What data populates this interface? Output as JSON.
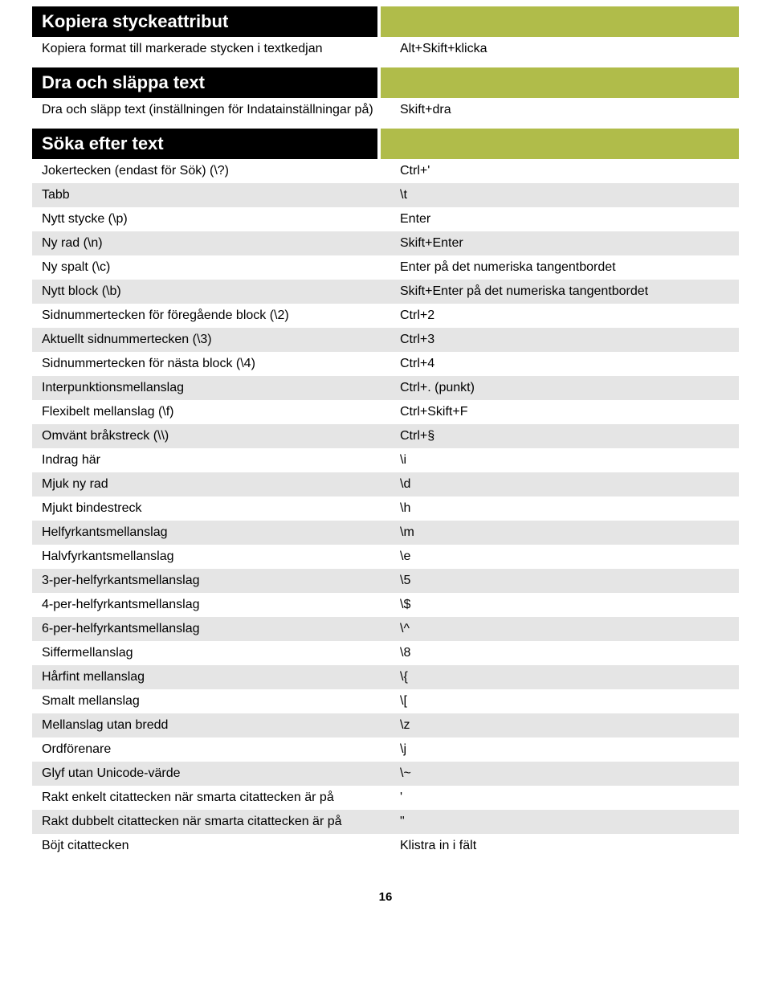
{
  "sections": [
    {
      "title": "Kopiera styckeattribut",
      "rows": [
        {
          "desc": "Kopiera format till markerade stycken i textkedjan",
          "key": "Alt+Skift+klicka",
          "alt": false
        }
      ]
    },
    {
      "title": "Dra och släppa text",
      "rows": [
        {
          "desc": "Dra och släpp text (inställningen för Indatainställningar på)",
          "key": "Skift+dra",
          "alt": false
        }
      ]
    },
    {
      "title": "Söka efter text",
      "rows": [
        {
          "desc": "Jokertecken (endast för Sök) (\\?)",
          "key": "Ctrl+'",
          "alt": false
        },
        {
          "desc": "Tabb",
          "key": "\\t",
          "alt": true
        },
        {
          "desc": "Nytt stycke  (\\p)",
          "key": "Enter",
          "alt": false
        },
        {
          "desc": "Ny rad  (\\n)",
          "key": "Skift+Enter",
          "alt": true
        },
        {
          "desc": "Ny spalt  (\\c)",
          "key": "Enter på det numeriska tangentbordet",
          "alt": false
        },
        {
          "desc": "Nytt block  (\\b)",
          "key": "Skift+Enter på det numeriska tangentbordet",
          "alt": true
        },
        {
          "desc": "Sidnummertecken för föregående block (\\2)",
          "key": "Ctrl+2",
          "alt": false
        },
        {
          "desc": "Aktuellt sidnummertecken (\\3)",
          "key": "Ctrl+3",
          "alt": true
        },
        {
          "desc": "Sidnummertecken för nästa block (\\4)",
          "key": "Ctrl+4",
          "alt": false
        },
        {
          "desc": "Interpunktionsmellanslag",
          "key": "Ctrl+. (punkt)",
          "alt": true
        },
        {
          "desc": "Flexibelt mellanslag (\\f)",
          "key": "Ctrl+Skift+F",
          "alt": false
        },
        {
          "desc": "Omvänt bråkstreck (\\\\)",
          "key": "Ctrl+§",
          "alt": true
        },
        {
          "desc": "Indrag här",
          "key": "\\i",
          "alt": false
        },
        {
          "desc": "Mjuk ny rad",
          "key": "\\d",
          "alt": true
        },
        {
          "desc": "Mjukt bindestreck",
          "key": "\\h",
          "alt": false
        },
        {
          "desc": "Helfyrkantsmellanslag",
          "key": "\\m",
          "alt": true
        },
        {
          "desc": "Halvfyrkantsmellanslag",
          "key": "\\e",
          "alt": false
        },
        {
          "desc": "3-per-helfyrkantsmellanslag",
          "key": "\\5",
          "alt": true
        },
        {
          "desc": "4-per-helfyrkantsmellanslag",
          "key": "\\$",
          "alt": false
        },
        {
          "desc": "6-per-helfyrkantsmellanslag",
          "key": "\\^",
          "alt": true
        },
        {
          "desc": "Siffermellanslag",
          "key": "\\8",
          "alt": false
        },
        {
          "desc": "Hårfint mellanslag",
          "key": "\\{",
          "alt": true
        },
        {
          "desc": "Smalt mellanslag",
          "key": "\\[",
          "alt": false
        },
        {
          "desc": "Mellanslag utan bredd",
          "key": "\\z",
          "alt": true
        },
        {
          "desc": "Ordförenare",
          "key": "\\j",
          "alt": false
        },
        {
          "desc": "Glyf utan Unicode-värde",
          "key": "\\~",
          "alt": true
        },
        {
          "desc": "Rakt enkelt citattecken när smarta citattecken är på",
          "key": "'",
          "alt": false
        },
        {
          "desc": "Rakt dubbelt citattecken när smarta citattecken är på",
          "key": "\"",
          "alt": true
        },
        {
          "desc": "Böjt citattecken",
          "key": "Klistra in i fält",
          "alt": false
        }
      ]
    }
  ],
  "page_number": "16",
  "colors": {
    "header_bg": "#000000",
    "header_fg": "#ffffff",
    "accent": "#b0bc4a",
    "row_alt": "#e5e5e5",
    "page_bg": "#ffffff"
  }
}
